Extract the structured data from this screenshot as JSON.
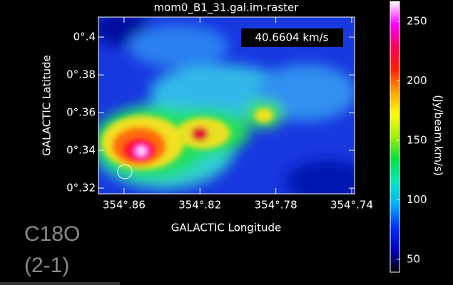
{
  "chart_data": {
    "type": "heatmap",
    "title": "mom0_B1_31.gal.im-raster",
    "annotation": "40.6604 km/s",
    "x_label": "GALACTIC Longitude",
    "y_label": "GALACTIC Latitude",
    "colorbar_label": "(Jy/beam.km/s)",
    "overlay_text": [
      "C18O",
      "(2-1)"
    ],
    "xlim": [
      354.8735,
      354.7385
    ],
    "xticks": [
      {
        "value": 354.86,
        "label": "354°.86"
      },
      {
        "value": 354.82,
        "label": "354°.82"
      },
      {
        "value": 354.78,
        "label": "354°.78"
      },
      {
        "value": 354.74,
        "label": "354°.74"
      }
    ],
    "ylim": [
      0.317,
      0.4106
    ],
    "yticks": [
      {
        "value": 0.32,
        "label": "0°.32"
      },
      {
        "value": 0.34,
        "label": "0°.34"
      },
      {
        "value": 0.36,
        "label": "0°.36"
      },
      {
        "value": 0.38,
        "label": "0°.38"
      },
      {
        "value": 0.4,
        "label": "0°.4"
      }
    ],
    "clim": [
      39.2,
      266.8
    ],
    "cticks": [
      50,
      100,
      150,
      200,
      250
    ],
    "colormap": [
      "#000000",
      "#0000c0",
      "#0030ff",
      "#00b0ff",
      "#00e8c0",
      "#00e040",
      "#a0f000",
      "#ffff00",
      "#ffa000",
      "#ff2000",
      "#ff0060",
      "#ff00ff",
      "#ffffff"
    ]
  }
}
